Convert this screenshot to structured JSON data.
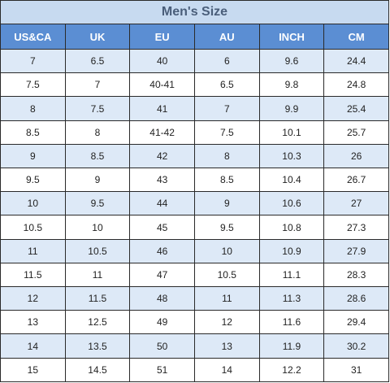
{
  "title": "Men's Size",
  "columns": [
    "US&CA",
    "UK",
    "EU",
    "AU",
    "INCH",
    "CM"
  ],
  "rows": [
    [
      "7",
      "6.5",
      "40",
      "6",
      "9.6",
      "24.4"
    ],
    [
      "7.5",
      "7",
      "40-41",
      "6.5",
      "9.8",
      "24.8"
    ],
    [
      "8",
      "7.5",
      "41",
      "7",
      "9.9",
      "25.4"
    ],
    [
      "8.5",
      "8",
      "41-42",
      "7.5",
      "10.1",
      "25.7"
    ],
    [
      "9",
      "8.5",
      "42",
      "8",
      "10.3",
      "26"
    ],
    [
      "9.5",
      "9",
      "43",
      "8.5",
      "10.4",
      "26.7"
    ],
    [
      "10",
      "9.5",
      "44",
      "9",
      "10.6",
      "27"
    ],
    [
      "10.5",
      "10",
      "45",
      "9.5",
      "10.8",
      "27.3"
    ],
    [
      "11",
      "10.5",
      "46",
      "10",
      "10.9",
      "27.9"
    ],
    [
      "11.5",
      "11",
      "47",
      "10.5",
      "11.1",
      "28.3"
    ],
    [
      "12",
      "11.5",
      "48",
      "11",
      "11.3",
      "28.6"
    ],
    [
      "13",
      "12.5",
      "49",
      "12",
      "11.6",
      "29.4"
    ],
    [
      "14",
      "13.5",
      "50",
      "13",
      "11.9",
      "30.2"
    ],
    [
      "15",
      "14.5",
      "51",
      "14",
      "12.2",
      "31"
    ]
  ],
  "colors": {
    "title_bg": "#c7daf0",
    "title_text": "#4a5e7a",
    "header_bg": "#5b8ed3",
    "header_text": "#ffffff",
    "row_shaded": "#dde9f7",
    "row_plain": "#ffffff",
    "border": "#2a2a2a"
  }
}
